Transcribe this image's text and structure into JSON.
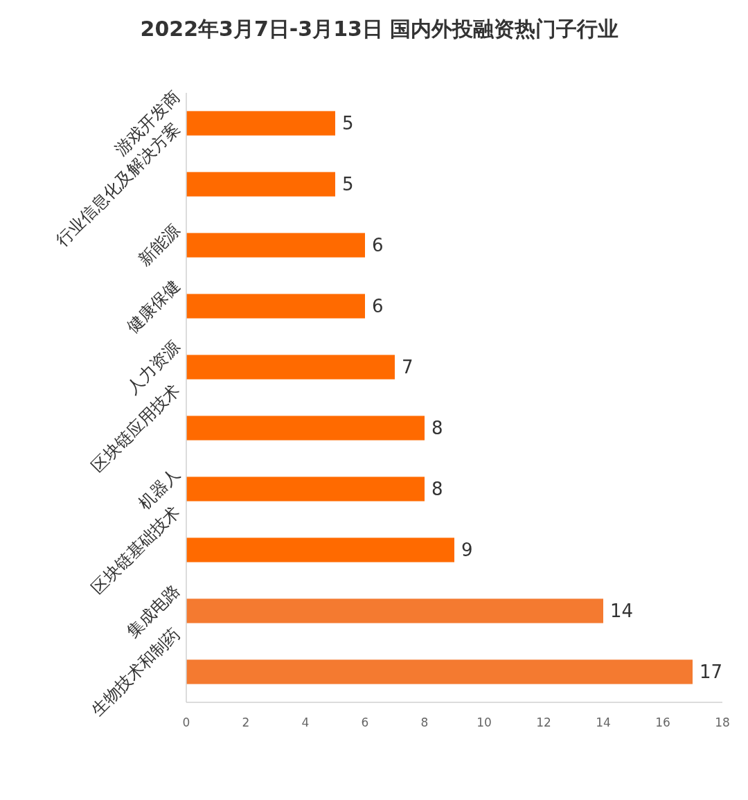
{
  "chart_data": {
    "type": "bar",
    "orientation": "horizontal",
    "title": "2022年3月7日-3月13日 国内外投融资热门子行业",
    "categories": [
      "游戏开发商",
      "行业信息化及解决方案",
      "新能源",
      "健康保健",
      "人力资源",
      "区块链应用技术",
      "机器人",
      "区块链基础技术",
      "集成电路",
      "生物技术和制药"
    ],
    "values": [
      5,
      5,
      6,
      6,
      7,
      8,
      8,
      9,
      14,
      17
    ],
    "colors": [
      "#ff6a00",
      "#ff6a00",
      "#ff6a00",
      "#ff6a00",
      "#ff6a00",
      "#ff6a00",
      "#ff6a00",
      "#ff6a00",
      "#f47a30",
      "#f47a30"
    ],
    "xlim": [
      0,
      18
    ],
    "xticks": [
      0,
      2,
      4,
      6,
      8,
      10,
      12,
      14,
      16,
      18
    ],
    "grid": false,
    "data_labels": true
  }
}
